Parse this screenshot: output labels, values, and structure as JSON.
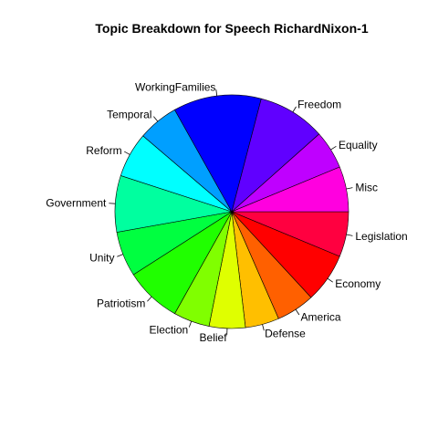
{
  "chart_data": {
    "type": "pie",
    "title": "Topic Breakdown for Speech RichardNixon-1",
    "clockwise": true,
    "start": "east",
    "slices": [
      {
        "label": "Legislation",
        "value": 1,
        "color": "#FF0040"
      },
      {
        "label": "Economy",
        "value": 1.1,
        "color": "#FF0000"
      },
      {
        "label": "America",
        "value": 0.85,
        "color": "#FF6000"
      },
      {
        "label": "Defense",
        "value": 0.75,
        "color": "#FFBF00"
      },
      {
        "label": "Belief",
        "value": 0.8,
        "color": "#DFFF00"
      },
      {
        "label": "Election",
        "value": 0.8,
        "color": "#80FF00"
      },
      {
        "label": "Patriotism",
        "value": 1.25,
        "color": "#20FF00"
      },
      {
        "label": "Unity",
        "value": 1,
        "color": "#00FF40"
      },
      {
        "label": "Government",
        "value": 1.25,
        "color": "#00FF9F"
      },
      {
        "label": "Reform",
        "value": 1,
        "color": "#00FFFF"
      },
      {
        "label": "Temporal",
        "value": 0.9,
        "color": "#009FFF"
      },
      {
        "label": "WorkingFamilies",
        "value": 1.95,
        "color": "#0000FF"
      },
      {
        "label": "Freedom",
        "value": 1.5,
        "color": "#6000FF"
      },
      {
        "label": "Equality",
        "value": 0.85,
        "color": "#BF00FF"
      },
      {
        "label": "Misc",
        "value": 1,
        "color": "#FF00DF"
      }
    ]
  }
}
